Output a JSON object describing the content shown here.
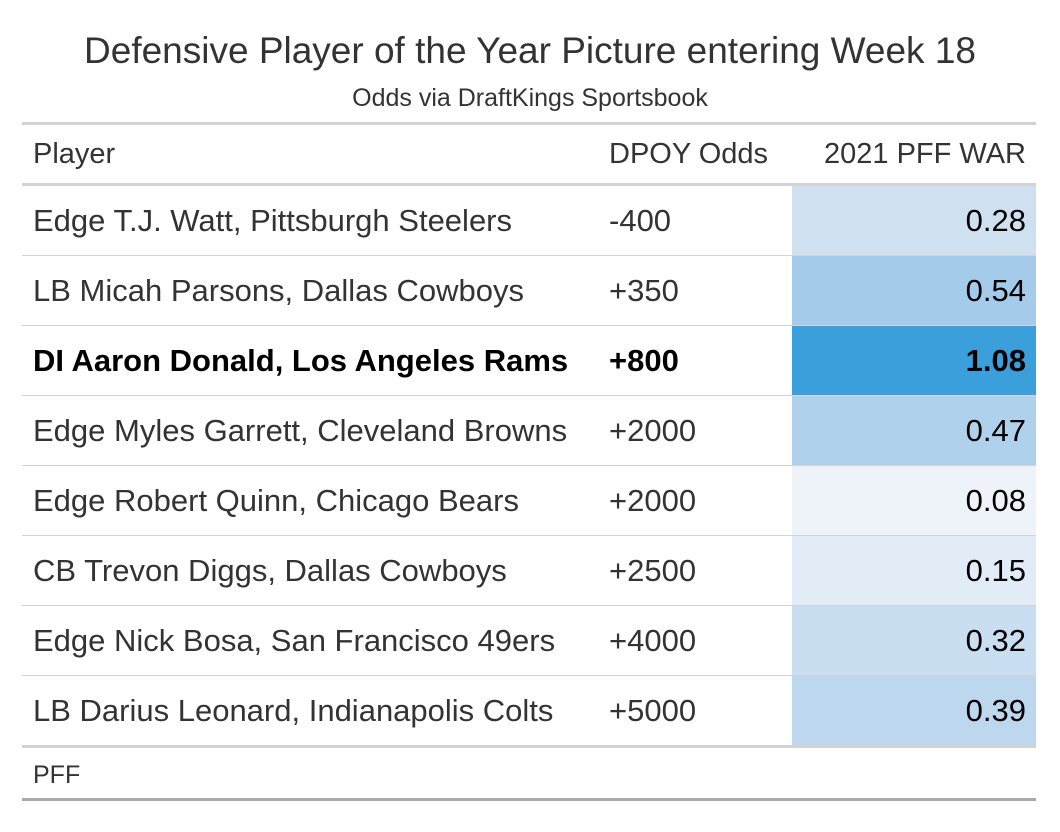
{
  "chart_data": {
    "type": "table",
    "title": "Defensive Player of the Year Picture entering Week 18",
    "subtitle": "Odds via DraftKings Sportsbook",
    "columns": [
      "Player",
      "DPOY Odds",
      "2021 PFF WAR"
    ],
    "rows": [
      {
        "player": "Edge T.J. Watt, Pittsburgh Steelers",
        "odds": "-400",
        "war": 0.28,
        "war_label": "0.28",
        "bold": false,
        "color": "#cfe1f1"
      },
      {
        "player": "LB Micah Parsons, Dallas Cowboys",
        "odds": "+350",
        "war": 0.54,
        "war_label": "0.54",
        "bold": false,
        "color": "#a5cbea"
      },
      {
        "player": "DI Aaron Donald, Los Angeles Rams",
        "odds": "+800",
        "war": 1.08,
        "war_label": "1.08",
        "bold": true,
        "color": "#3a9fdb"
      },
      {
        "player": "Edge Myles Garrett, Cleveland Browns",
        "odds": "+2000",
        "war": 0.47,
        "war_label": "0.47",
        "bold": false,
        "color": "#b0d1ec"
      },
      {
        "player": "Edge Robert Quinn, Chicago Bears",
        "odds": "+2000",
        "war": 0.08,
        "war_label": "0.08",
        "bold": false,
        "color": "#eef3f9"
      },
      {
        "player": "CB Trevon Diggs, Dallas Cowboys",
        "odds": "+2500",
        "war": 0.15,
        "war_label": "0.15",
        "bold": false,
        "color": "#e1ecf6"
      },
      {
        "player": "Edge Nick Bosa, San Francisco 49ers",
        "odds": "+4000",
        "war": 0.32,
        "war_label": "0.32",
        "bold": false,
        "color": "#c9def1"
      },
      {
        "player": "LB Darius Leonard, Indianapolis Colts",
        "odds": "+5000",
        "war": 0.39,
        "war_label": "0.39",
        "bold": false,
        "color": "#bcd7ee"
      }
    ],
    "source": "PFF"
  }
}
